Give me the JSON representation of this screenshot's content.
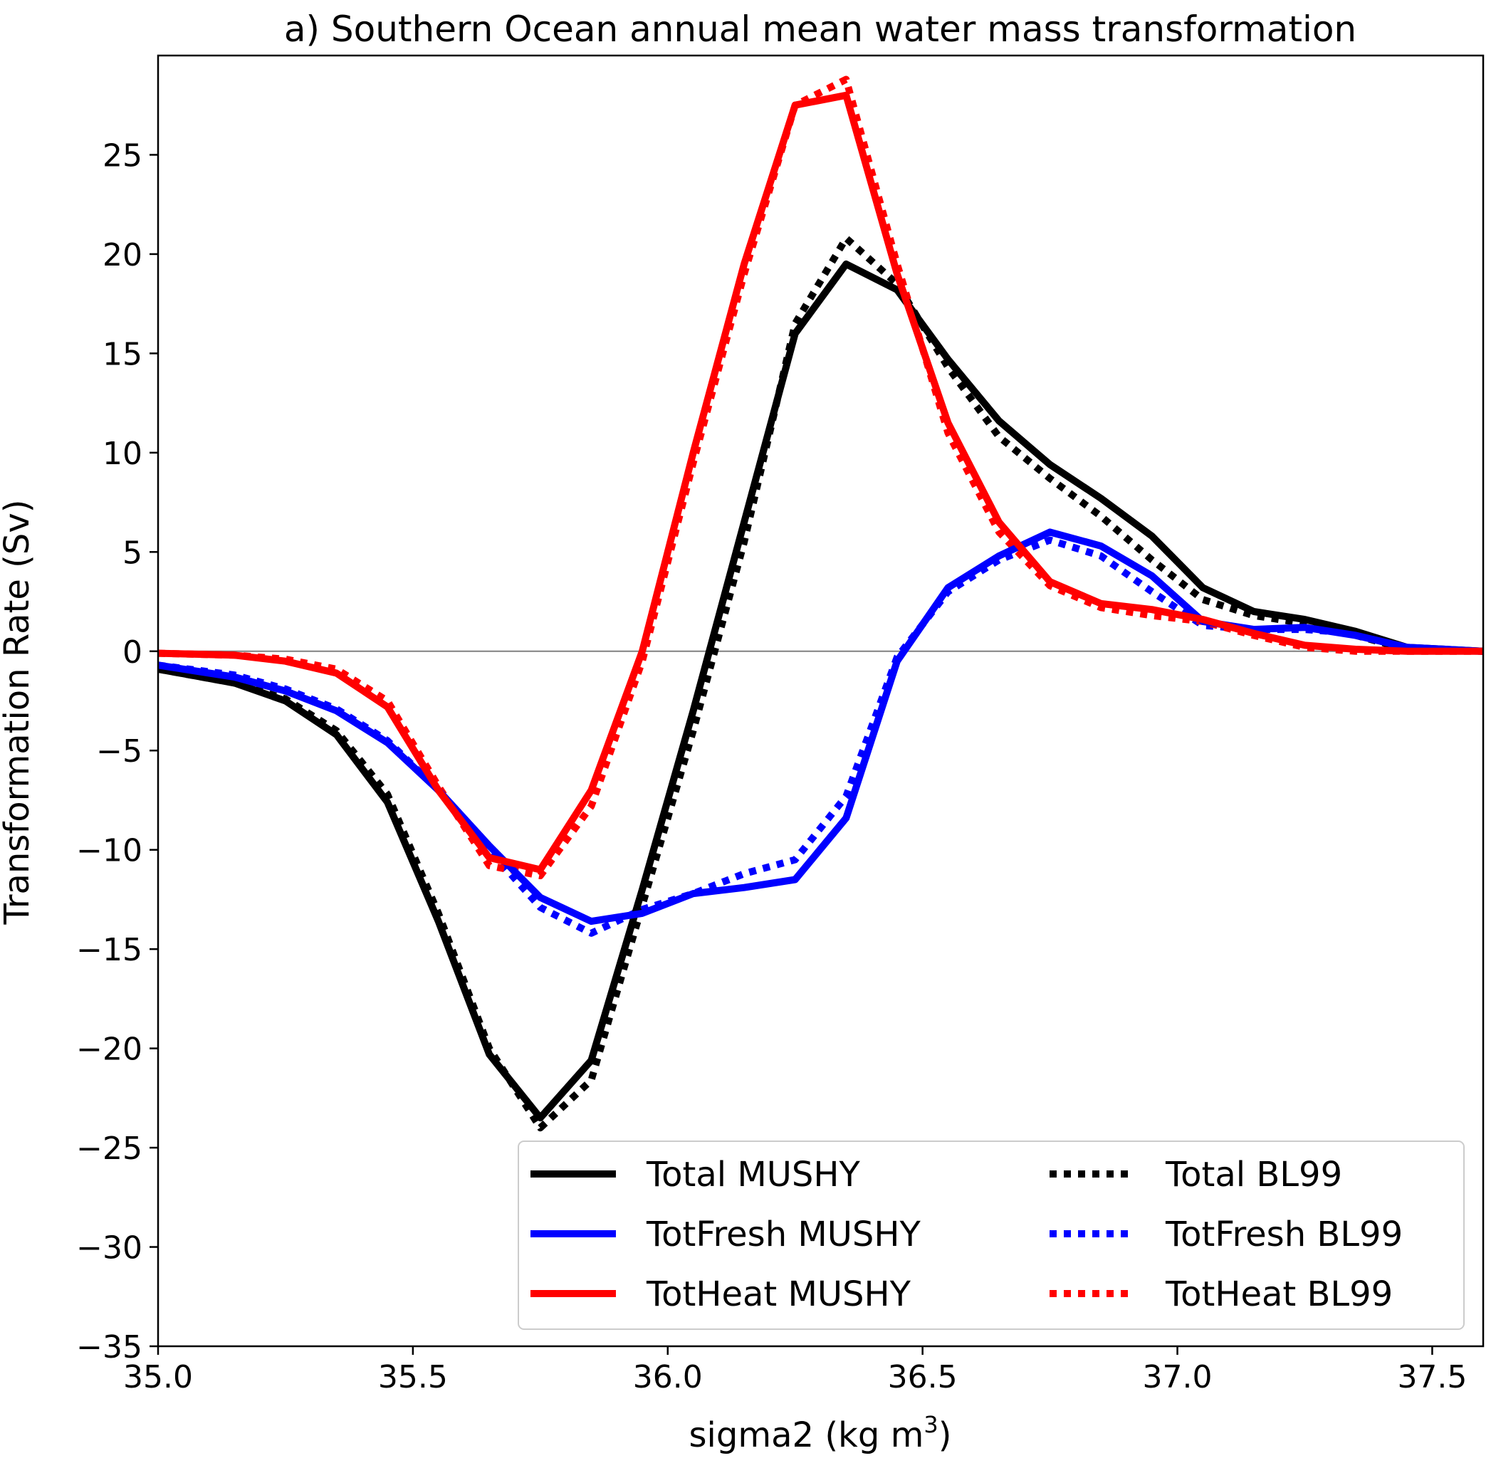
{
  "chart_data": {
    "type": "line",
    "title": "a) Southern Ocean annual mean water mass transformation",
    "xlabel": "sigma2 (kg m",
    "xlabel_sup": "3",
    "xlabel_close": ")",
    "ylabel": "Transformation Rate (Sv)",
    "xlim": [
      35.0,
      37.6
    ],
    "ylim": [
      -35,
      30
    ],
    "xticks": [
      35.0,
      35.5,
      36.0,
      36.5,
      37.0,
      37.5
    ],
    "xtick_labels": [
      "35.0",
      "35.5",
      "36.0",
      "36.5",
      "37.0",
      "37.5"
    ],
    "yticks": [
      -35,
      -30,
      -25,
      -20,
      -15,
      -10,
      -5,
      0,
      5,
      10,
      15,
      20,
      25
    ],
    "ytick_labels": [
      "−35",
      "−30",
      "−25",
      "−20",
      "−15",
      "−10",
      "−5",
      "0",
      "5",
      "10",
      "15",
      "20",
      "25"
    ],
    "zero_line": true,
    "grid": false,
    "legend_position": "lower-right",
    "legend_columns": 2,
    "x": [
      35.0,
      35.15,
      35.25,
      35.35,
      35.45,
      35.55,
      35.65,
      35.75,
      35.85,
      35.95,
      36.05,
      36.15,
      36.25,
      36.35,
      36.45,
      36.55,
      36.65,
      36.75,
      36.85,
      36.95,
      37.05,
      37.15,
      37.25,
      37.35,
      37.45,
      37.6
    ],
    "series": [
      {
        "name": "Total MUSHY",
        "color": "#000000",
        "style": "solid",
        "values": [
          -0.9,
          -1.6,
          -2.5,
          -4.2,
          -7.6,
          -13.6,
          -20.3,
          -23.5,
          -20.6,
          -12.0,
          -3.0,
          6.5,
          16.0,
          19.5,
          18.2,
          14.7,
          11.6,
          9.4,
          7.7,
          5.8,
          3.2,
          2.0,
          1.6,
          1.0,
          0.2,
          0.0
        ]
      },
      {
        "name": "TotFresh MUSHY",
        "color": "#0000ff",
        "style": "solid",
        "values": [
          -0.7,
          -1.3,
          -2.0,
          -3.0,
          -4.6,
          -7.0,
          -9.8,
          -12.4,
          -13.6,
          -13.2,
          -12.2,
          -11.9,
          -11.5,
          -8.4,
          -0.5,
          3.2,
          4.8,
          6.0,
          5.3,
          3.8,
          1.5,
          1.1,
          1.2,
          0.8,
          0.2,
          0.0
        ]
      },
      {
        "name": "TotHeat MUSHY",
        "color": "#ff0000",
        "style": "solid",
        "values": [
          -0.1,
          -0.2,
          -0.5,
          -1.1,
          -2.8,
          -7.0,
          -10.4,
          -11.0,
          -7.0,
          0.0,
          10.0,
          19.5,
          27.5,
          28.0,
          19.0,
          11.5,
          6.5,
          3.5,
          2.4,
          2.1,
          1.6,
          0.9,
          0.3,
          0.1,
          0.0,
          0.0
        ]
      },
      {
        "name": "Total BL99",
        "color": "#000000",
        "style": "dotted",
        "values": [
          -0.9,
          -1.6,
          -2.4,
          -4.0,
          -7.2,
          -13.2,
          -20.0,
          -24.0,
          -21.6,
          -12.8,
          -4.0,
          5.5,
          16.5,
          20.8,
          18.5,
          14.3,
          10.8,
          8.7,
          6.8,
          4.6,
          2.6,
          1.8,
          1.4,
          0.8,
          0.1,
          0.0
        ]
      },
      {
        "name": "TotFresh BL99",
        "color": "#0000ff",
        "style": "dotted",
        "values": [
          -0.7,
          -1.2,
          -1.9,
          -2.9,
          -4.5,
          -7.0,
          -10.0,
          -12.9,
          -14.2,
          -13.0,
          -12.2,
          -11.2,
          -10.5,
          -7.3,
          -0.3,
          3.0,
          4.6,
          5.6,
          4.8,
          3.0,
          1.3,
          1.1,
          1.1,
          0.9,
          0.1,
          0.0
        ]
      },
      {
        "name": "TotHeat BL99",
        "color": "#ff0000",
        "style": "dotted",
        "values": [
          -0.1,
          -0.2,
          -0.4,
          -0.9,
          -2.5,
          -6.8,
          -10.8,
          -11.3,
          -7.8,
          -0.5,
          9.5,
          19.0,
          27.5,
          28.8,
          19.5,
          11.0,
          6.0,
          3.3,
          2.2,
          1.8,
          1.5,
          0.8,
          0.2,
          0.0,
          0.0,
          0.0
        ]
      }
    ]
  }
}
